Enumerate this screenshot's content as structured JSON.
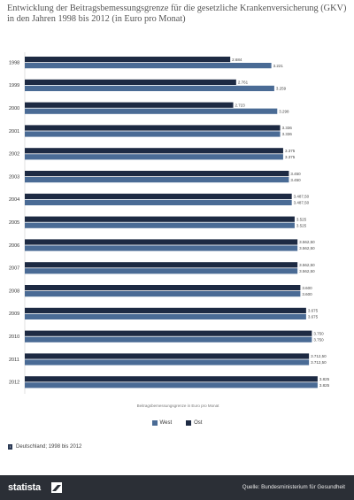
{
  "title": "Entwicklung der Beitragsbemessungsgrenze für die gesetzliche Krankenversicherung (GKV) in den Jahren 1998 bis 2012 (in Euro pro Monat)",
  "colors": {
    "west": "#4a6b95",
    "ost": "#1d2a43"
  },
  "legend": {
    "west": "West",
    "ost": "Ost"
  },
  "note": "Deutschland; 1998 bis 2012",
  "footer": {
    "brand": "statista",
    "source": "Quelle: Bundesministerium für Gesundheit"
  },
  "chart_data": {
    "type": "bar",
    "orientation": "horizontal",
    "categories": [
      "1998",
      "1999",
      "2000",
      "2001",
      "2002",
      "2003",
      "2004",
      "2005",
      "2006",
      "2007",
      "2008",
      "2009",
      "2010",
      "2011",
      "2012"
    ],
    "xlabel": "Beitragsbemessungsgrenze in Euro pro Monat",
    "xlim": [
      0,
      4000
    ],
    "grid": false,
    "legend_position": "bottom",
    "series": [
      {
        "name": "West",
        "values": [
          3221,
          3259,
          3298,
          3336,
          3375,
          3450,
          3487.5,
          3525,
          3562.5,
          3562.5,
          3600,
          3675,
          3750,
          3712.5,
          3825
        ],
        "labels": [
          "3.221",
          "3.259",
          "3.298",
          "3.336",
          "3.375",
          "3.450",
          "3.487,50",
          "3.525",
          "3.562,50",
          "3.562,50",
          "3.600",
          "3.675",
          "3.750",
          "3.712,50",
          "3.825"
        ]
      },
      {
        "name": "Ost",
        "values": [
          2684,
          2761,
          2723,
          3336,
          3375,
          3450,
          3487.5,
          3525,
          3562.5,
          3562.5,
          3600,
          3675,
          3750,
          3712.5,
          3825
        ],
        "labels": [
          "2.684",
          "2.761",
          "2.723",
          "3.336",
          "3.375",
          "3.450",
          "3.487,50",
          "3.525",
          "3.562,50",
          "3.562,50",
          "3.600",
          "3.675",
          "3.750",
          "3.712,50",
          "3.825"
        ]
      }
    ]
  }
}
